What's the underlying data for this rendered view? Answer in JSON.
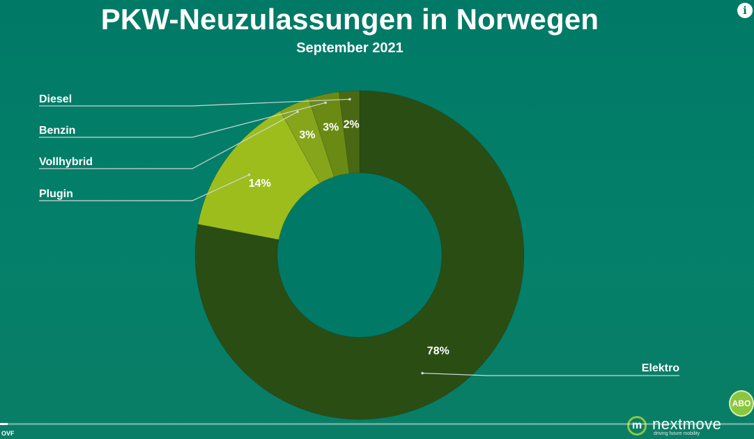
{
  "header": {
    "title": "PKW-Neuzulassungen in Norwegen",
    "subtitle": "September 2021"
  },
  "chart_data": {
    "type": "pie",
    "variant": "donut",
    "title": "PKW-Neuzulassungen in Norwegen",
    "subtitle": "September 2021",
    "unit": "%",
    "slices": [
      {
        "label": "Elektro",
        "value": 78,
        "value_label": "78%",
        "color": "#2a4d14"
      },
      {
        "label": "Plugin",
        "value": 14,
        "value_label": "14%",
        "color": "#9dbd1d"
      },
      {
        "label": "Vollhybrid",
        "value": 3,
        "value_label": "3%",
        "color": "#86a51b"
      },
      {
        "label": "Benzin",
        "value": 3,
        "value_label": "3%",
        "color": "#6b8a14"
      },
      {
        "label": "Diesel",
        "value": 2,
        "value_label": "2%",
        "color": "#4a6814"
      }
    ],
    "legend": "callout labels on left side and bottom-right"
  },
  "overlay": {
    "info_icon": "i",
    "subscribe_badge": "ABO",
    "brand_mark": "m",
    "brand_name": "nextmove",
    "brand_tagline": "driving future mobility",
    "source_label": "OVF",
    "video_progress": 0.01
  },
  "colors": {
    "background": "#007a66",
    "donut_hole": "#007a66",
    "leader_line": "#cfd8d5",
    "accent_green": "#8cc63f"
  }
}
